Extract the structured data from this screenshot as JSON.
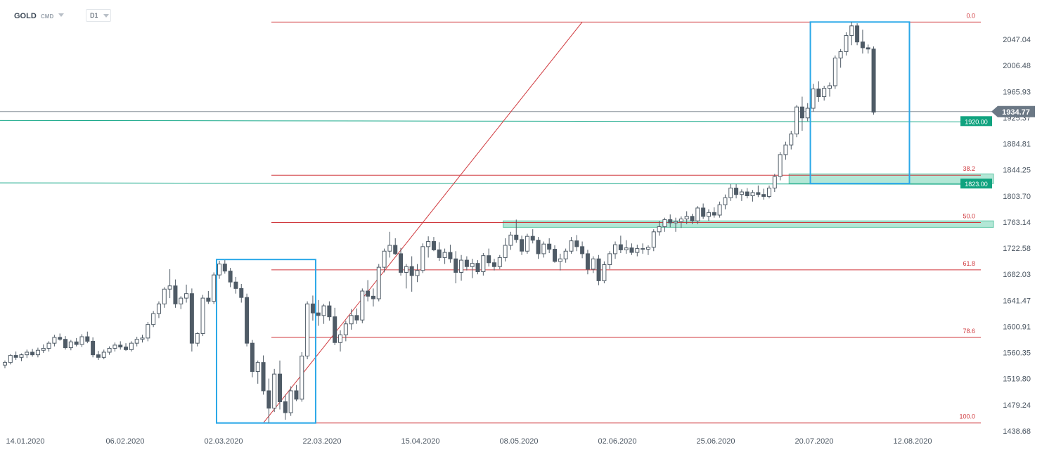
{
  "header": {
    "symbol": "GOLD",
    "market": "CMD",
    "timeframe": "D1"
  },
  "colors": {
    "bull_body": "#ffffff",
    "bear_body": "#4f5b66",
    "wick": "#4f5b66",
    "fib_line": "#d0393e",
    "fib_label": "#d0393e",
    "level_line": "#19a98a",
    "level_tag": "#10a37f",
    "zone_fill": "#a6e3cf",
    "box_stroke": "#2aa8e8",
    "price_tag": "#6b7885",
    "current_line": "#8a939c",
    "axis_text": "#4a5561",
    "trend_line": "#d0393e"
  },
  "chart_data": {
    "type": "candlestick",
    "symbol": "GOLD",
    "timeframe": "D1",
    "ylim": [
      1425,
      2100
    ],
    "y_ticks": [
      "2047.04",
      "2006.48",
      "1965.93",
      "1925.37",
      "1884.81",
      "1844.25",
      "1803.70",
      "1763.14",
      "1722.58",
      "1682.03",
      "1641.47",
      "1600.91",
      "1560.35",
      "1519.80",
      "1479.24",
      "1438.68"
    ],
    "x_labels": [
      "14.01.2020",
      "06.02.2020",
      "02.03.2020",
      "22.03.2020",
      "15.04.2020",
      "08.05.2020",
      "02.06.2020",
      "25.06.2020",
      "20.07.2020",
      "12.08.2020"
    ],
    "current_price": "1934.77",
    "horizontal_levels": [
      {
        "label": "1920.00",
        "value": 1920
      },
      {
        "label": "1823.00",
        "value": 1823
      }
    ],
    "fibonacci": {
      "high": 2074,
      "low": 1451,
      "levels": [
        {
          "label": "0.0",
          "value": 2074
        },
        {
          "label": "38.2",
          "value": 1836
        },
        {
          "label": "50.0",
          "value": 1762.5
        },
        {
          "label": "61.8",
          "value": 1689
        },
        {
          "label": "78.6",
          "value": 1584
        },
        {
          "label": "100.0",
          "value": 1451
        }
      ]
    },
    "zones": [
      {
        "from": 1755,
        "to": 1765,
        "start_index": 91
      },
      {
        "from": 1823,
        "to": 1838,
        "start_index": 143
      }
    ],
    "boxes": [
      {
        "start_index": 39,
        "end_index": 56,
        "from": 1451,
        "to": 1705
      },
      {
        "start_index": 147,
        "end_index": 164,
        "from": 1823,
        "to": 2074
      }
    ],
    "trendline": {
      "start_index": 47,
      "start_value": 1451,
      "end_index": 105,
      "end_value": 2074
    },
    "candles": [
      [
        1541,
        1548,
        1536,
        1545
      ],
      [
        1545,
        1558,
        1542,
        1556
      ],
      [
        1556,
        1562,
        1549,
        1553
      ],
      [
        1553,
        1559,
        1547,
        1557
      ],
      [
        1557,
        1565,
        1552,
        1561
      ],
      [
        1561,
        1566,
        1554,
        1557
      ],
      [
        1557,
        1568,
        1553,
        1564
      ],
      [
        1564,
        1573,
        1560,
        1567
      ],
      [
        1567,
        1578,
        1562,
        1575
      ],
      [
        1575,
        1588,
        1570,
        1584
      ],
      [
        1584,
        1590,
        1579,
        1581
      ],
      [
        1581,
        1586,
        1565,
        1568
      ],
      [
        1568,
        1580,
        1564,
        1577
      ],
      [
        1577,
        1583,
        1570,
        1573
      ],
      [
        1573,
        1589,
        1569,
        1585
      ],
      [
        1585,
        1593,
        1575,
        1578
      ],
      [
        1578,
        1584,
        1553,
        1557
      ],
      [
        1557,
        1563,
        1549,
        1553
      ],
      [
        1553,
        1565,
        1550,
        1561
      ],
      [
        1561,
        1570,
        1557,
        1567
      ],
      [
        1567,
        1576,
        1562,
        1572
      ],
      [
        1572,
        1578,
        1565,
        1569
      ],
      [
        1569,
        1575,
        1563,
        1565
      ],
      [
        1565,
        1578,
        1562,
        1575
      ],
      [
        1575,
        1585,
        1570,
        1581
      ],
      [
        1581,
        1588,
        1576,
        1583
      ],
      [
        1583,
        1608,
        1578,
        1604
      ],
      [
        1604,
        1625,
        1600,
        1621
      ],
      [
        1621,
        1640,
        1614,
        1636
      ],
      [
        1636,
        1662,
        1630,
        1659
      ],
      [
        1659,
        1690,
        1645,
        1664
      ],
      [
        1664,
        1674,
        1630,
        1636
      ],
      [
        1636,
        1648,
        1628,
        1645
      ],
      [
        1645,
        1666,
        1638,
        1652
      ],
      [
        1652,
        1660,
        1562,
        1575
      ],
      [
        1575,
        1592,
        1570,
        1590
      ],
      [
        1590,
        1650,
        1586,
        1645
      ],
      [
        1645,
        1656,
        1636,
        1640
      ],
      [
        1640,
        1685,
        1636,
        1681
      ],
      [
        1681,
        1703,
        1675,
        1698
      ],
      [
        1698,
        1704,
        1683,
        1687
      ],
      [
        1687,
        1692,
        1662,
        1670
      ],
      [
        1670,
        1678,
        1652,
        1660
      ],
      [
        1660,
        1667,
        1638,
        1646
      ],
      [
        1646,
        1652,
        1570,
        1575
      ],
      [
        1575,
        1580,
        1522,
        1531
      ],
      [
        1531,
        1548,
        1512,
        1545
      ],
      [
        1545,
        1556,
        1495,
        1501
      ],
      [
        1501,
        1520,
        1451,
        1474
      ],
      [
        1474,
        1535,
        1468,
        1527
      ],
      [
        1527,
        1548,
        1472,
        1484
      ],
      [
        1484,
        1495,
        1456,
        1467
      ],
      [
        1467,
        1508,
        1462,
        1501
      ],
      [
        1501,
        1510,
        1485,
        1488
      ],
      [
        1488,
        1561,
        1484,
        1555
      ],
      [
        1555,
        1640,
        1550,
        1636
      ],
      [
        1636,
        1649,
        1610,
        1622
      ],
      [
        1622,
        1642,
        1602,
        1618
      ],
      [
        1618,
        1636,
        1605,
        1633
      ],
      [
        1633,
        1640,
        1610,
        1616
      ],
      [
        1616,
        1630,
        1572,
        1576
      ],
      [
        1576,
        1595,
        1562,
        1588
      ],
      [
        1588,
        1610,
        1578,
        1605
      ],
      [
        1605,
        1628,
        1596,
        1618
      ],
      [
        1618,
        1629,
        1605,
        1611
      ],
      [
        1611,
        1660,
        1606,
        1656
      ],
      [
        1656,
        1673,
        1640,
        1648
      ],
      [
        1648,
        1660,
        1632,
        1644
      ],
      [
        1644,
        1698,
        1640,
        1693
      ],
      [
        1693,
        1722,
        1685,
        1718
      ],
      [
        1718,
        1748,
        1708,
        1727
      ],
      [
        1727,
        1738,
        1712,
        1714
      ],
      [
        1714,
        1723,
        1680,
        1685
      ],
      [
        1685,
        1698,
        1660,
        1694
      ],
      [
        1694,
        1710,
        1655,
        1680
      ],
      [
        1680,
        1698,
        1670,
        1688
      ],
      [
        1688,
        1730,
        1684,
        1725
      ],
      [
        1725,
        1741,
        1708,
        1733
      ],
      [
        1733,
        1740,
        1718,
        1720
      ],
      [
        1720,
        1732,
        1703,
        1708
      ],
      [
        1708,
        1722,
        1698,
        1716
      ],
      [
        1716,
        1728,
        1700,
        1706
      ],
      [
        1706,
        1718,
        1668,
        1685
      ],
      [
        1685,
        1712,
        1672,
        1704
      ],
      [
        1704,
        1710,
        1688,
        1694
      ],
      [
        1694,
        1706,
        1676,
        1699
      ],
      [
        1699,
        1704,
        1682,
        1686
      ],
      [
        1686,
        1715,
        1680,
        1711
      ],
      [
        1711,
        1722,
        1694,
        1700
      ],
      [
        1700,
        1706,
        1688,
        1694
      ],
      [
        1694,
        1712,
        1690,
        1708
      ],
      [
        1708,
        1738,
        1702,
        1727
      ],
      [
        1727,
        1748,
        1720,
        1743
      ],
      [
        1743,
        1767,
        1731,
        1736
      ],
      [
        1736,
        1742,
        1712,
        1718
      ],
      [
        1718,
        1745,
        1714,
        1741
      ],
      [
        1741,
        1752,
        1730,
        1735
      ],
      [
        1735,
        1740,
        1706,
        1714
      ],
      [
        1714,
        1733,
        1708,
        1729
      ],
      [
        1729,
        1738,
        1715,
        1721
      ],
      [
        1721,
        1727,
        1700,
        1702
      ],
      [
        1702,
        1714,
        1688,
        1706
      ],
      [
        1706,
        1722,
        1700,
        1718
      ],
      [
        1718,
        1740,
        1714,
        1734
      ],
      [
        1734,
        1743,
        1718,
        1725
      ],
      [
        1725,
        1733,
        1707,
        1714
      ],
      [
        1714,
        1720,
        1682,
        1690
      ],
      [
        1690,
        1710,
        1684,
        1706
      ],
      [
        1706,
        1712,
        1665,
        1672
      ],
      [
        1672,
        1702,
        1668,
        1697
      ],
      [
        1697,
        1718,
        1690,
        1714
      ],
      [
        1714,
        1733,
        1706,
        1728
      ],
      [
        1728,
        1742,
        1715,
        1720
      ],
      [
        1720,
        1735,
        1714,
        1723
      ],
      [
        1723,
        1730,
        1712,
        1716
      ],
      [
        1716,
        1728,
        1710,
        1722
      ],
      [
        1722,
        1730,
        1714,
        1721
      ],
      [
        1721,
        1727,
        1712,
        1724
      ],
      [
        1724,
        1752,
        1718,
        1748
      ],
      [
        1748,
        1765,
        1742,
        1756
      ],
      [
        1756,
        1770,
        1748,
        1767
      ],
      [
        1767,
        1775,
        1755,
        1762
      ],
      [
        1762,
        1770,
        1748,
        1764
      ],
      [
        1764,
        1772,
        1754,
        1768
      ],
      [
        1768,
        1780,
        1760,
        1772
      ],
      [
        1772,
        1776,
        1760,
        1765
      ],
      [
        1765,
        1788,
        1760,
        1785
      ],
      [
        1785,
        1792,
        1768,
        1772
      ],
      [
        1772,
        1783,
        1765,
        1778
      ],
      [
        1778,
        1786,
        1770,
        1774
      ],
      [
        1774,
        1795,
        1770,
        1790
      ],
      [
        1790,
        1806,
        1783,
        1801
      ],
      [
        1801,
        1822,
        1796,
        1816
      ],
      [
        1816,
        1822,
        1800,
        1806
      ],
      [
        1806,
        1814,
        1796,
        1810
      ],
      [
        1810,
        1816,
        1800,
        1804
      ],
      [
        1804,
        1813,
        1795,
        1809
      ],
      [
        1809,
        1820,
        1802,
        1806
      ],
      [
        1806,
        1815,
        1798,
        1803
      ],
      [
        1803,
        1820,
        1800,
        1816
      ],
      [
        1816,
        1838,
        1810,
        1834
      ],
      [
        1834,
        1872,
        1828,
        1868
      ],
      [
        1868,
        1888,
        1860,
        1883
      ],
      [
        1883,
        1905,
        1876,
        1900
      ],
      [
        1900,
        1945,
        1895,
        1942
      ],
      [
        1942,
        1958,
        1905,
        1925
      ],
      [
        1925,
        1948,
        1920,
        1940
      ],
      [
        1940,
        1978,
        1935,
        1970
      ],
      [
        1970,
        1982,
        1950,
        1958
      ],
      [
        1958,
        1975,
        1952,
        1971
      ],
      [
        1971,
        1980,
        1958,
        1975
      ],
      [
        1975,
        2022,
        1970,
        2018
      ],
      [
        2018,
        2032,
        2003,
        2028
      ],
      [
        2028,
        2058,
        2022,
        2053
      ],
      [
        2053,
        2074,
        2038,
        2068
      ],
      [
        2068,
        2072,
        2038,
        2043
      ],
      [
        2043,
        2062,
        2025,
        2034
      ],
      [
        2034,
        2039,
        2025,
        2032
      ],
      [
        2032,
        2036,
        1930,
        1934
      ]
    ]
  }
}
